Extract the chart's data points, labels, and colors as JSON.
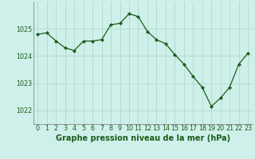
{
  "x": [
    0,
    1,
    2,
    3,
    4,
    5,
    6,
    7,
    8,
    9,
    10,
    11,
    12,
    13,
    14,
    15,
    16,
    17,
    18,
    19,
    20,
    21,
    22,
    23
  ],
  "y": [
    1024.8,
    1024.85,
    1024.55,
    1024.3,
    1024.2,
    1024.55,
    1024.55,
    1024.6,
    1025.15,
    1025.2,
    1025.55,
    1025.45,
    1024.9,
    1024.6,
    1024.45,
    1024.05,
    1023.7,
    1023.25,
    1022.85,
    1022.15,
    1022.45,
    1022.85,
    1023.7,
    1024.1
  ],
  "line_color": "#1a5c1a",
  "marker_color": "#1a5c1a",
  "bg_color": "#cff0ea",
  "grid_color": "#b0d8cc",
  "axis_color": "#888888",
  "ylabel_ticks": [
    1022,
    1023,
    1024,
    1025
  ],
  "xlabel_label": "Graphe pression niveau de la mer (hPa)",
  "xlim": [
    -0.5,
    23.5
  ],
  "ylim": [
    1021.5,
    1026.0
  ],
  "tick_fontsize": 5.8,
  "xlabel_fontsize": 7.0
}
